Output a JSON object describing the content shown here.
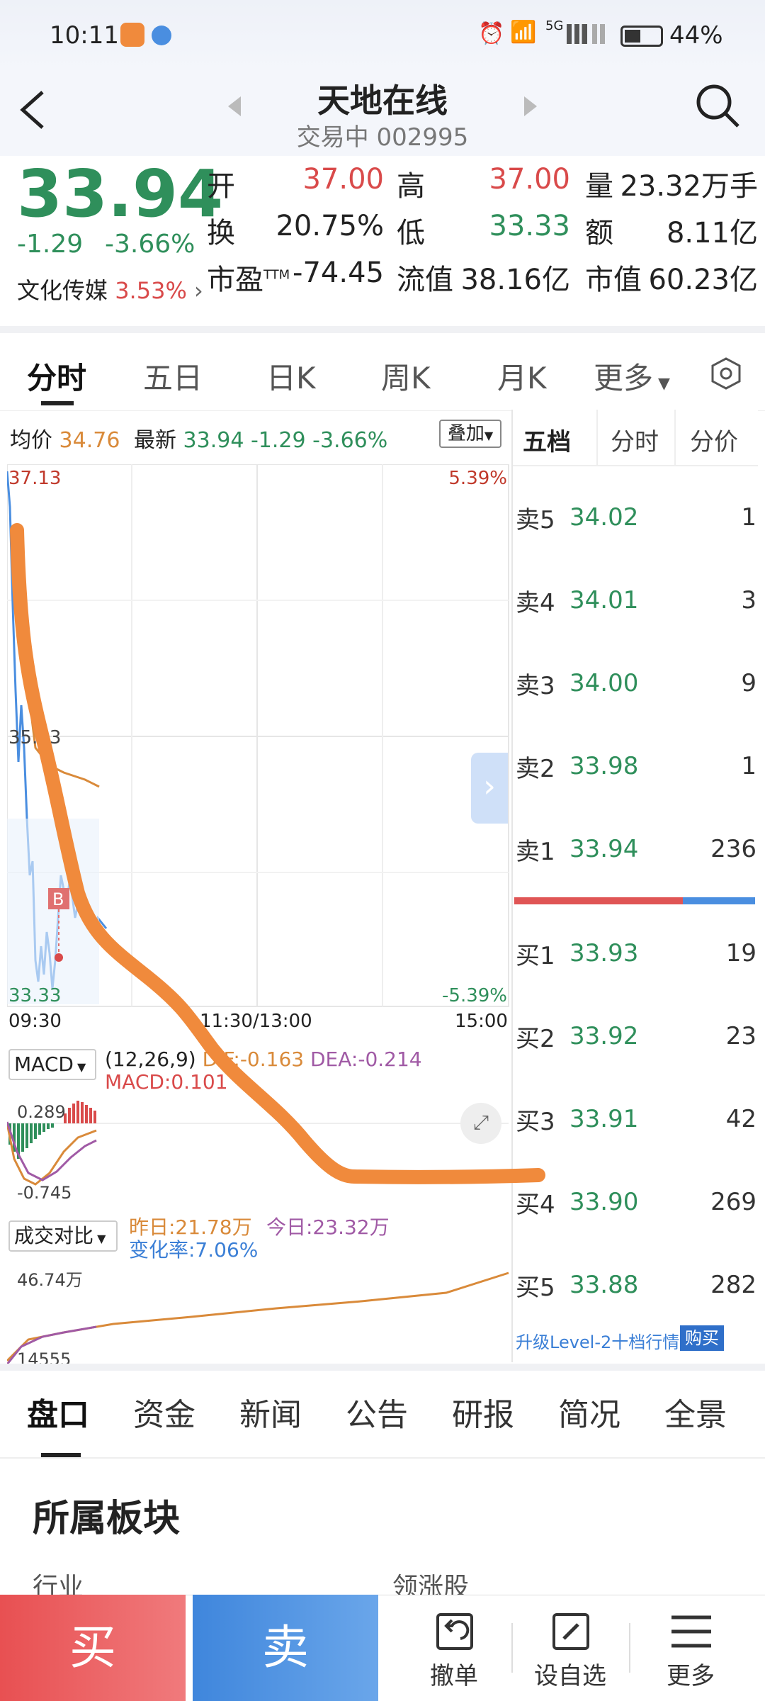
{
  "status_bar": {
    "time": "10:11",
    "battery": "44%",
    "network": "5G"
  },
  "header": {
    "title": "天地在线",
    "state": "交易中",
    "code": "002995"
  },
  "quote": {
    "price": "33.94",
    "change": "-1.29",
    "change_pct": "-3.66%",
    "sector_name": "文化传媒",
    "sector_pct": "3.53%",
    "stats": [
      {
        "label": "开",
        "value": "37.00",
        "tone": "red"
      },
      {
        "label": "高",
        "value": "37.00",
        "tone": "red"
      },
      {
        "label": "量",
        "value": "23.32万手",
        "tone": "dark"
      },
      {
        "label": "换",
        "value": "20.75%",
        "tone": "dark"
      },
      {
        "label": "低",
        "value": "33.33",
        "tone": "green"
      },
      {
        "label": "额",
        "value": "8.11亿",
        "tone": "dark"
      },
      {
        "label": "市盈",
        "label_sup": "TTM",
        "value": "-74.45",
        "tone": "dark"
      },
      {
        "label": "流值",
        "value": "38.16亿",
        "tone": "dark"
      },
      {
        "label": "市值",
        "value": "60.23亿",
        "tone": "dark"
      }
    ]
  },
  "chart_tabs": [
    "分时",
    "五日",
    "日K",
    "周K",
    "月K",
    "更多"
  ],
  "intraday": {
    "avg_label": "均价",
    "avg_value": "34.76",
    "latest_label": "最新",
    "latest_value": "33.94",
    "latest_change": "-1.29",
    "latest_pct": "-3.66%",
    "overlay_label": "叠加",
    "y_top": "37.13",
    "y_mid": "35.23",
    "y_bottom": "33.33",
    "pct_top": "5.39%",
    "pct_bottom": "-5.39%",
    "x_start": "09:30",
    "x_mid": "11:30/13:00",
    "x_end": "15:00",
    "buy_marker": "B"
  },
  "macd": {
    "selector": "MACD",
    "params": "(12,26,9)",
    "dif": "DIF:-0.163",
    "dea": "DEA:-0.214",
    "macd": "MACD:0.101",
    "y_top": "0.289",
    "y_bottom": "-0.745"
  },
  "volume_compare": {
    "selector": "成交对比",
    "yesterday": "昨日:21.78万",
    "today": "今日:23.32万",
    "change_rate": "变化率:7.06%",
    "y_top": "46.74万",
    "y_bottom": "14555"
  },
  "orderbook": {
    "tabs": [
      "五档",
      "分时",
      "分价"
    ],
    "asks": [
      {
        "label": "卖5",
        "price": "34.02",
        "qty": "1"
      },
      {
        "label": "卖4",
        "price": "34.01",
        "qty": "3"
      },
      {
        "label": "卖3",
        "price": "34.00",
        "qty": "9"
      },
      {
        "label": "卖2",
        "price": "33.98",
        "qty": "1"
      },
      {
        "label": "卖1",
        "price": "33.94",
        "qty": "236"
      }
    ],
    "bids": [
      {
        "label": "买1",
        "price": "33.93",
        "qty": "19"
      },
      {
        "label": "买2",
        "price": "33.92",
        "qty": "23"
      },
      {
        "label": "买3",
        "price": "33.91",
        "qty": "42"
      },
      {
        "label": "买4",
        "price": "33.90",
        "qty": "269"
      },
      {
        "label": "买5",
        "price": "33.88",
        "qty": "282"
      }
    ],
    "upgrade_text": "升级Level-2十档行情",
    "buy_badge": "购买"
  },
  "info_tabs": [
    "盘口",
    "资金",
    "新闻",
    "公告",
    "研报",
    "简况",
    "全景"
  ],
  "section": {
    "title": "所属板块",
    "col1": "行业",
    "col2": "领涨股"
  },
  "bottom": {
    "buy": "买",
    "sell": "卖",
    "cancel": "撤单",
    "watch": "设自选",
    "more": "更多"
  },
  "colors": {
    "red": "#d94a4a",
    "green": "#2f8f5b",
    "buy_btn": "#ea5b5e",
    "sell_btn": "#4a8ee0",
    "annotation": "#f08a3c"
  }
}
